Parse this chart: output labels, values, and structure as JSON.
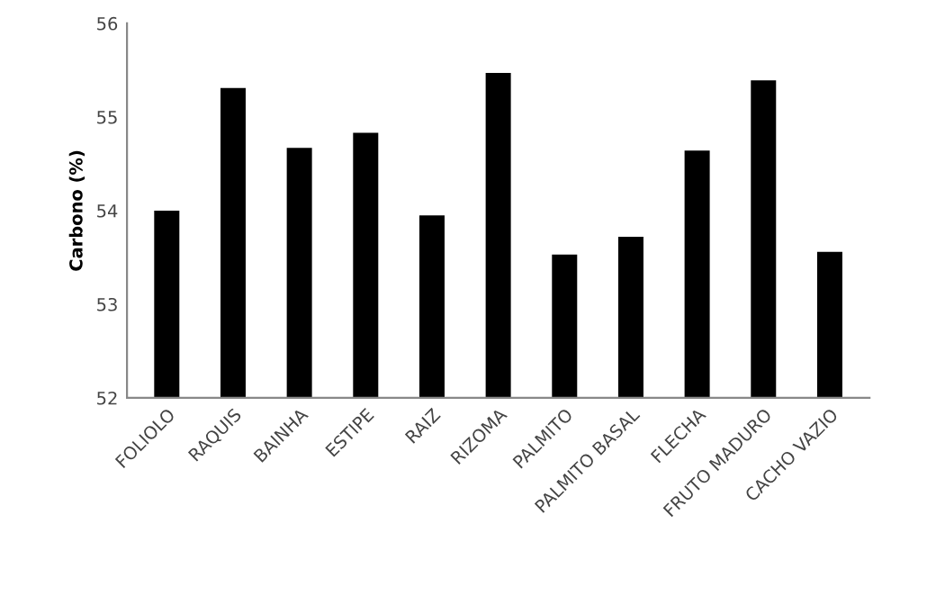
{
  "chart_data": {
    "type": "bar",
    "ylabel": "Carbono (%)",
    "categories": [
      "FOLIOLO",
      "RAQUIS",
      "BAINHA",
      "ESTIPE",
      "RAIZ",
      "RIZOMA",
      "PALMITO",
      "PALMITO BASAL",
      "FLECHA",
      "FRUTO MADURO",
      "CACHO VAZIO"
    ],
    "values": [
      54.0,
      55.31,
      54.67,
      54.83,
      53.95,
      55.47,
      53.53,
      53.72,
      54.64,
      55.39,
      53.56
    ],
    "color": "#000000",
    "ylim": [
      52,
      56
    ],
    "yticks": [
      52,
      53,
      54,
      55,
      56
    ],
    "grid": false,
    "legend": false
  }
}
